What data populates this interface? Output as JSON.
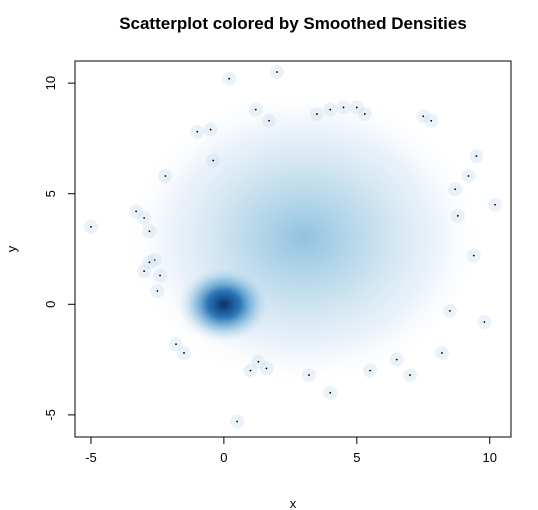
{
  "chart_data": {
    "type": "scatter",
    "title": "Scatterplot colored by Smoothed Densities",
    "xlabel": "x",
    "ylabel": "y",
    "xlim": [
      -5.6,
      10.8
    ],
    "ylim": [
      -6.0,
      11.0
    ],
    "x_ticks": [
      -5,
      0,
      5,
      10
    ],
    "y_ticks": [
      -5,
      0,
      5,
      10
    ],
    "x_tick_labels": [
      "-5",
      "0",
      "5",
      "10"
    ],
    "y_tick_labels": [
      "-5",
      "0",
      "5",
      "10"
    ],
    "grid": false,
    "legend": "none",
    "color_scale": [
      "#ffffff",
      "#6baed6",
      "#08306b"
    ],
    "density_clusters": [
      {
        "center_x": 0.0,
        "center_y": 0.0,
        "spread_x": 0.8,
        "spread_y": 0.8,
        "peak_density": 1.0
      },
      {
        "center_x": 3.0,
        "center_y": 3.0,
        "spread_x": 3.0,
        "spread_y": 3.0,
        "peak_density": 0.45
      }
    ],
    "outlier_points": [
      {
        "x": -5.0,
        "y": 3.5
      },
      {
        "x": -3.3,
        "y": 4.2
      },
      {
        "x": -3.0,
        "y": 3.9
      },
      {
        "x": -2.8,
        "y": 3.3
      },
      {
        "x": -2.6,
        "y": 2.0
      },
      {
        "x": -2.4,
        "y": 1.3
      },
      {
        "x": -2.5,
        "y": 0.6
      },
      {
        "x": -2.8,
        "y": 1.9
      },
      {
        "x": -3.0,
        "y": 1.5
      },
      {
        "x": -1.8,
        "y": -1.8
      },
      {
        "x": -1.5,
        "y": -2.2
      },
      {
        "x": -2.2,
        "y": 5.8
      },
      {
        "x": -1.0,
        "y": 7.8
      },
      {
        "x": -0.5,
        "y": 7.9
      },
      {
        "x": 0.2,
        "y": 10.2
      },
      {
        "x": 2.0,
        "y": 10.5
      },
      {
        "x": 1.2,
        "y": 8.8
      },
      {
        "x": 4.0,
        "y": 8.8
      },
      {
        "x": 4.5,
        "y": 8.9
      },
      {
        "x": 5.0,
        "y": 8.9
      },
      {
        "x": 5.3,
        "y": 8.6
      },
      {
        "x": 7.5,
        "y": 8.5
      },
      {
        "x": 7.8,
        "y": 8.3
      },
      {
        "x": 9.5,
        "y": 6.7
      },
      {
        "x": 9.2,
        "y": 5.8
      },
      {
        "x": 10.2,
        "y": 4.5
      },
      {
        "x": 8.8,
        "y": 4.0
      },
      {
        "x": 9.4,
        "y": 2.2
      },
      {
        "x": 9.8,
        "y": -0.8
      },
      {
        "x": 8.2,
        "y": -2.2
      },
      {
        "x": 7.0,
        "y": -3.2
      },
      {
        "x": 4.0,
        "y": -4.0
      },
      {
        "x": 0.5,
        "y": -5.3
      },
      {
        "x": 1.0,
        "y": -3.0
      },
      {
        "x": 1.3,
        "y": -2.6
      },
      {
        "x": 1.6,
        "y": -2.9
      },
      {
        "x": 3.2,
        "y": -3.2
      },
      {
        "x": 5.5,
        "y": -3.0
      },
      {
        "x": 6.5,
        "y": -2.5
      },
      {
        "x": -0.4,
        "y": 6.5
      },
      {
        "x": 1.7,
        "y": 8.3
      },
      {
        "x": 3.5,
        "y": 8.6
      },
      {
        "x": 8.7,
        "y": 5.2
      },
      {
        "x": 8.5,
        "y": -0.3
      }
    ]
  }
}
